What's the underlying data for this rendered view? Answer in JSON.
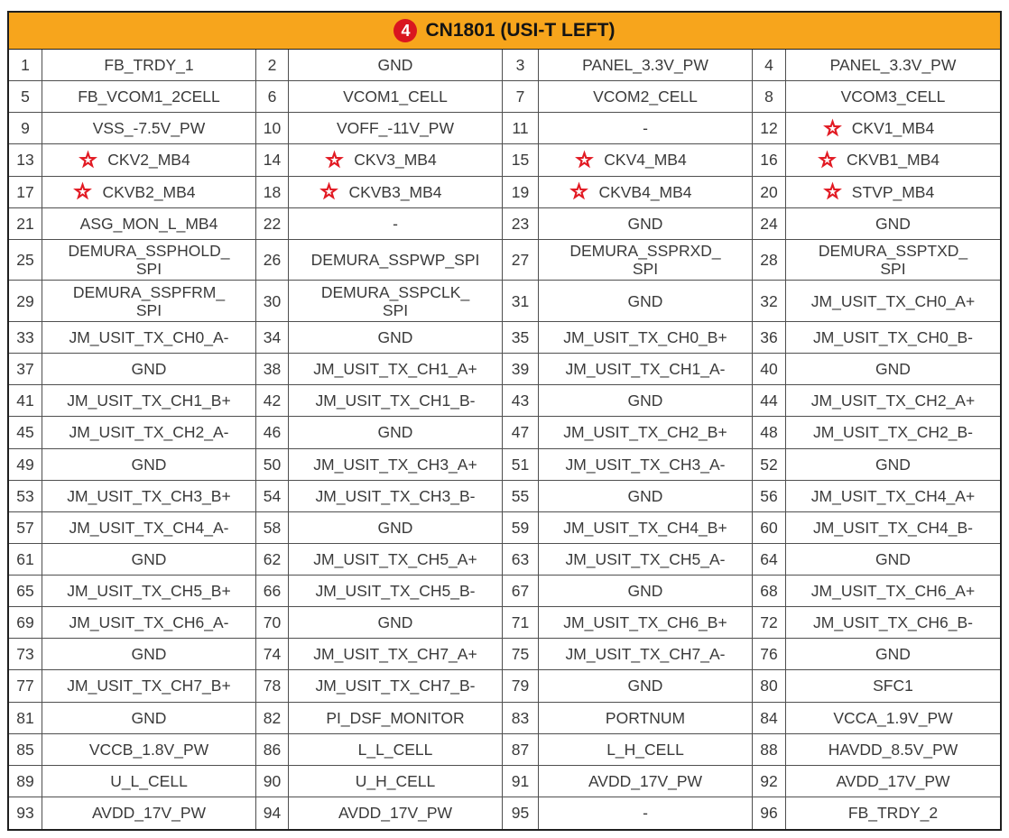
{
  "header": {
    "badge": "4",
    "title": "CN1801 (USI-T LEFT)"
  },
  "colors": {
    "header_bg": "#F7A51C",
    "badge_red": "#D9151F",
    "star_red": "#E21A23",
    "text": "#3A3A3A",
    "grid_line": "#4F4F4F"
  },
  "icons": {
    "star": "star-icon"
  },
  "pins": [
    {
      "pin": "1",
      "name": "FB_TRDY_1",
      "star": false
    },
    {
      "pin": "2",
      "name": "GND",
      "star": false
    },
    {
      "pin": "3",
      "name": "PANEL_3.3V_PW",
      "star": false
    },
    {
      "pin": "4",
      "name": "PANEL_3.3V_PW",
      "star": false
    },
    {
      "pin": "5",
      "name": "FB_VCOM1_2CELL",
      "star": false
    },
    {
      "pin": "6",
      "name": "VCOM1_CELL",
      "star": false
    },
    {
      "pin": "7",
      "name": "VCOM2_CELL",
      "star": false
    },
    {
      "pin": "8",
      "name": "VCOM3_CELL",
      "star": false
    },
    {
      "pin": "9",
      "name": "VSS_-7.5V_PW",
      "star": false
    },
    {
      "pin": "10",
      "name": "VOFF_-11V_PW",
      "star": false
    },
    {
      "pin": "11",
      "name": "-",
      "star": false
    },
    {
      "pin": "12",
      "name": "CKV1_MB4",
      "star": true
    },
    {
      "pin": "13",
      "name": "CKV2_MB4",
      "star": true
    },
    {
      "pin": "14",
      "name": "CKV3_MB4",
      "star": true
    },
    {
      "pin": "15",
      "name": "CKV4_MB4",
      "star": true
    },
    {
      "pin": "16",
      "name": "CKVB1_MB4",
      "star": true
    },
    {
      "pin": "17",
      "name": "CKVB2_MB4",
      "star": true
    },
    {
      "pin": "18",
      "name": "CKVB3_MB4",
      "star": true
    },
    {
      "pin": "19",
      "name": "CKVB4_MB4",
      "star": true
    },
    {
      "pin": "20",
      "name": "STVP_MB4",
      "star": true
    },
    {
      "pin": "21",
      "name": "ASG_MON_L_MB4",
      "star": false
    },
    {
      "pin": "22",
      "name": "-",
      "star": false
    },
    {
      "pin": "23",
      "name": "GND",
      "star": false
    },
    {
      "pin": "24",
      "name": "GND",
      "star": false
    },
    {
      "pin": "25",
      "name": "DEMURA_SSPHOLD_\nSPI",
      "star": false
    },
    {
      "pin": "26",
      "name": "DEMURA_SSPWP_SPI",
      "star": false
    },
    {
      "pin": "27",
      "name": "DEMURA_SSPRXD_\nSPI",
      "star": false
    },
    {
      "pin": "28",
      "name": "DEMURA_SSPTXD_\nSPI",
      "star": false
    },
    {
      "pin": "29",
      "name": "DEMURA_SSPFRM_\nSPI",
      "star": false
    },
    {
      "pin": "30",
      "name": "DEMURA_SSPCLK_\nSPI",
      "star": false
    },
    {
      "pin": "31",
      "name": "GND",
      "star": false
    },
    {
      "pin": "32",
      "name": "JM_USIT_TX_CH0_A+",
      "star": false
    },
    {
      "pin": "33",
      "name": "JM_USIT_TX_CH0_A-",
      "star": false
    },
    {
      "pin": "34",
      "name": "GND",
      "star": false
    },
    {
      "pin": "35",
      "name": "JM_USIT_TX_CH0_B+",
      "star": false
    },
    {
      "pin": "36",
      "name": "JM_USIT_TX_CH0_B-",
      "star": false
    },
    {
      "pin": "37",
      "name": "GND",
      "star": false
    },
    {
      "pin": "38",
      "name": "JM_USIT_TX_CH1_A+",
      "star": false
    },
    {
      "pin": "39",
      "name": "JM_USIT_TX_CH1_A-",
      "star": false
    },
    {
      "pin": "40",
      "name": "GND",
      "star": false
    },
    {
      "pin": "41",
      "name": "JM_USIT_TX_CH1_B+",
      "star": false
    },
    {
      "pin": "42",
      "name": "JM_USIT_TX_CH1_B-",
      "star": false
    },
    {
      "pin": "43",
      "name": "GND",
      "star": false
    },
    {
      "pin": "44",
      "name": "JM_USIT_TX_CH2_A+",
      "star": false
    },
    {
      "pin": "45",
      "name": "JM_USIT_TX_CH2_A-",
      "star": false
    },
    {
      "pin": "46",
      "name": "GND",
      "star": false
    },
    {
      "pin": "47",
      "name": "JM_USIT_TX_CH2_B+",
      "star": false
    },
    {
      "pin": "48",
      "name": "JM_USIT_TX_CH2_B-",
      "star": false
    },
    {
      "pin": "49",
      "name": "GND",
      "star": false
    },
    {
      "pin": "50",
      "name": "JM_USIT_TX_CH3_A+",
      "star": false
    },
    {
      "pin": "51",
      "name": "JM_USIT_TX_CH3_A-",
      "star": false
    },
    {
      "pin": "52",
      "name": "GND",
      "star": false
    },
    {
      "pin": "53",
      "name": "JM_USIT_TX_CH3_B+",
      "star": false
    },
    {
      "pin": "54",
      "name": "JM_USIT_TX_CH3_B-",
      "star": false
    },
    {
      "pin": "55",
      "name": "GND",
      "star": false
    },
    {
      "pin": "56",
      "name": "JM_USIT_TX_CH4_A+",
      "star": false
    },
    {
      "pin": "57",
      "name": "JM_USIT_TX_CH4_A-",
      "star": false
    },
    {
      "pin": "58",
      "name": "GND",
      "star": false
    },
    {
      "pin": "59",
      "name": "JM_USIT_TX_CH4_B+",
      "star": false
    },
    {
      "pin": "60",
      "name": "JM_USIT_TX_CH4_B-",
      "star": false
    },
    {
      "pin": "61",
      "name": "GND",
      "star": false
    },
    {
      "pin": "62",
      "name": "JM_USIT_TX_CH5_A+",
      "star": false
    },
    {
      "pin": "63",
      "name": "JM_USIT_TX_CH5_A-",
      "star": false
    },
    {
      "pin": "64",
      "name": "GND",
      "star": false
    },
    {
      "pin": "65",
      "name": "JM_USIT_TX_CH5_B+",
      "star": false
    },
    {
      "pin": "66",
      "name": "JM_USIT_TX_CH5_B-",
      "star": false
    },
    {
      "pin": "67",
      "name": "GND",
      "star": false
    },
    {
      "pin": "68",
      "name": "JM_USIT_TX_CH6_A+",
      "star": false
    },
    {
      "pin": "69",
      "name": "JM_USIT_TX_CH6_A-",
      "star": false
    },
    {
      "pin": "70",
      "name": "GND",
      "star": false
    },
    {
      "pin": "71",
      "name": "JM_USIT_TX_CH6_B+",
      "star": false
    },
    {
      "pin": "72",
      "name": "JM_USIT_TX_CH6_B-",
      "star": false
    },
    {
      "pin": "73",
      "name": "GND",
      "star": false
    },
    {
      "pin": "74",
      "name": "JM_USIT_TX_CH7_A+",
      "star": false
    },
    {
      "pin": "75",
      "name": "JM_USIT_TX_CH7_A-",
      "star": false
    },
    {
      "pin": "76",
      "name": "GND",
      "star": false
    },
    {
      "pin": "77",
      "name": "JM_USIT_TX_CH7_B+",
      "star": false
    },
    {
      "pin": "78",
      "name": "JM_USIT_TX_CH7_B-",
      "star": false
    },
    {
      "pin": "79",
      "name": "GND",
      "star": false
    },
    {
      "pin": "80",
      "name": "SFC1",
      "star": false
    },
    {
      "pin": "81",
      "name": "GND",
      "star": false
    },
    {
      "pin": "82",
      "name": "PI_DSF_MONITOR",
      "star": false
    },
    {
      "pin": "83",
      "name": "PORTNUM",
      "star": false
    },
    {
      "pin": "84",
      "name": "VCCA_1.9V_PW",
      "star": false
    },
    {
      "pin": "85",
      "name": "VCCB_1.8V_PW",
      "star": false
    },
    {
      "pin": "86",
      "name": "L_L_CELL",
      "star": false
    },
    {
      "pin": "87",
      "name": "L_H_CELL",
      "star": false
    },
    {
      "pin": "88",
      "name": "HAVDD_8.5V_PW",
      "star": false
    },
    {
      "pin": "89",
      "name": "U_L_CELL",
      "star": false
    },
    {
      "pin": "90",
      "name": "U_H_CELL",
      "star": false
    },
    {
      "pin": "91",
      "name": "AVDD_17V_PW",
      "star": false
    },
    {
      "pin": "92",
      "name": "AVDD_17V_PW",
      "star": false
    },
    {
      "pin": "93",
      "name": "AVDD_17V_PW",
      "star": false
    },
    {
      "pin": "94",
      "name": "AVDD_17V_PW",
      "star": false
    },
    {
      "pin": "95",
      "name": "-",
      "star": false
    },
    {
      "pin": "96",
      "name": "FB_TRDY_2",
      "star": false
    }
  ]
}
